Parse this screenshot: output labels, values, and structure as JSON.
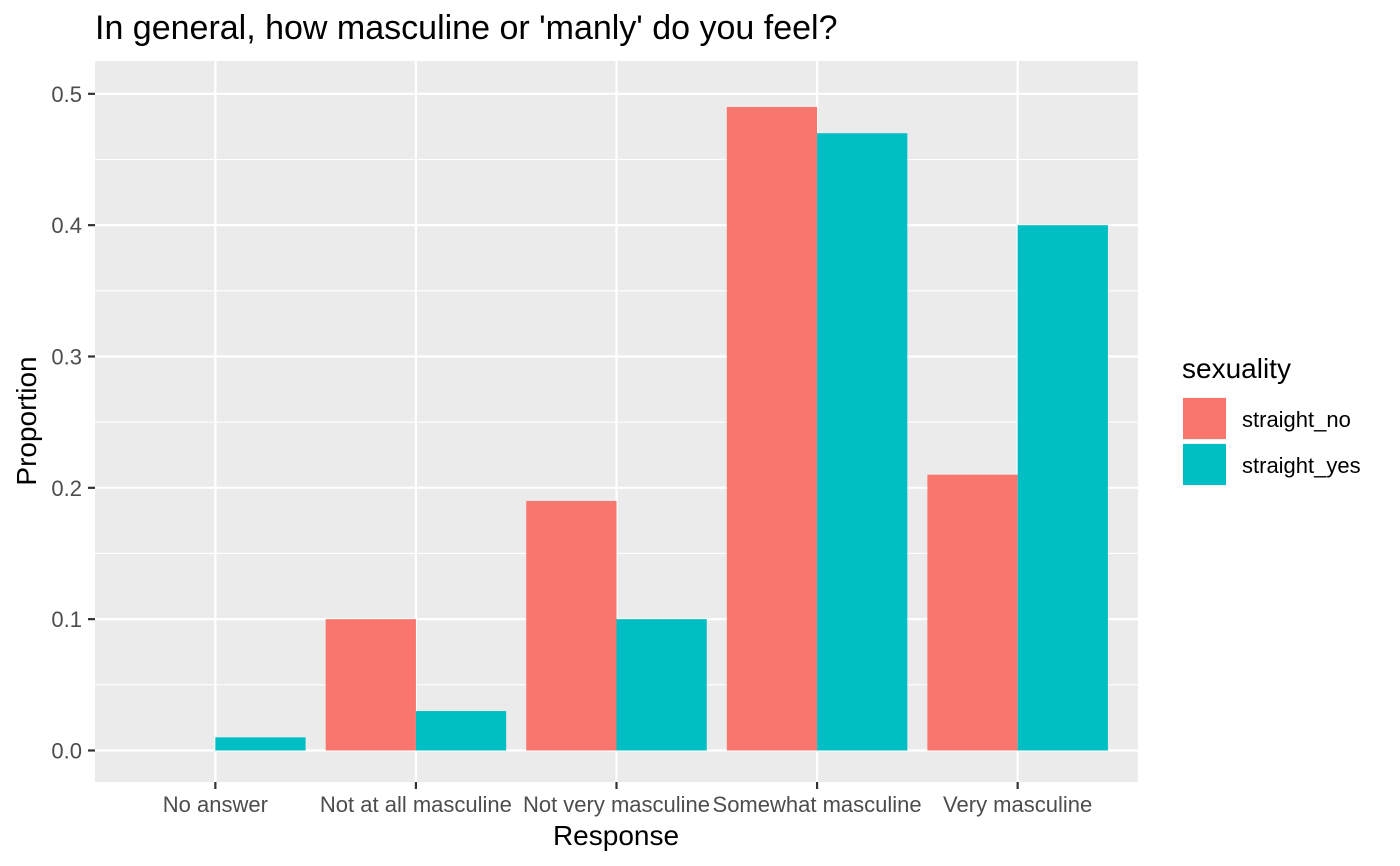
{
  "chart_data": {
    "type": "bar",
    "title": "In general, how masculine or 'manly' do you feel?",
    "xlabel": "Response",
    "ylabel": "Proportion",
    "categories": [
      "No answer",
      "Not at all masculine",
      "Not very masculine",
      "Somewhat masculine",
      "Very masculine"
    ],
    "series": [
      {
        "name": "straight_no",
        "color": "#F8766D",
        "values": [
          0,
          0.1,
          0.19,
          0.49,
          0.21
        ]
      },
      {
        "name": "straight_yes",
        "color": "#00BFC4",
        "values": [
          0.01,
          0.03,
          0.1,
          0.47,
          0.4
        ]
      }
    ],
    "ylim": [
      -0.024,
      0.525
    ],
    "yticks": [
      0,
      0.1,
      0.2,
      0.3,
      0.4,
      0.5
    ],
    "ytick_labels": [
      "0.0",
      "0.1",
      "0.2",
      "0.3",
      "0.4",
      "0.5"
    ],
    "grid": true,
    "legend": {
      "title": "sexuality",
      "position": "right"
    },
    "panel_color": "#EBEBEB",
    "grid_color": "#FFFFFF"
  }
}
